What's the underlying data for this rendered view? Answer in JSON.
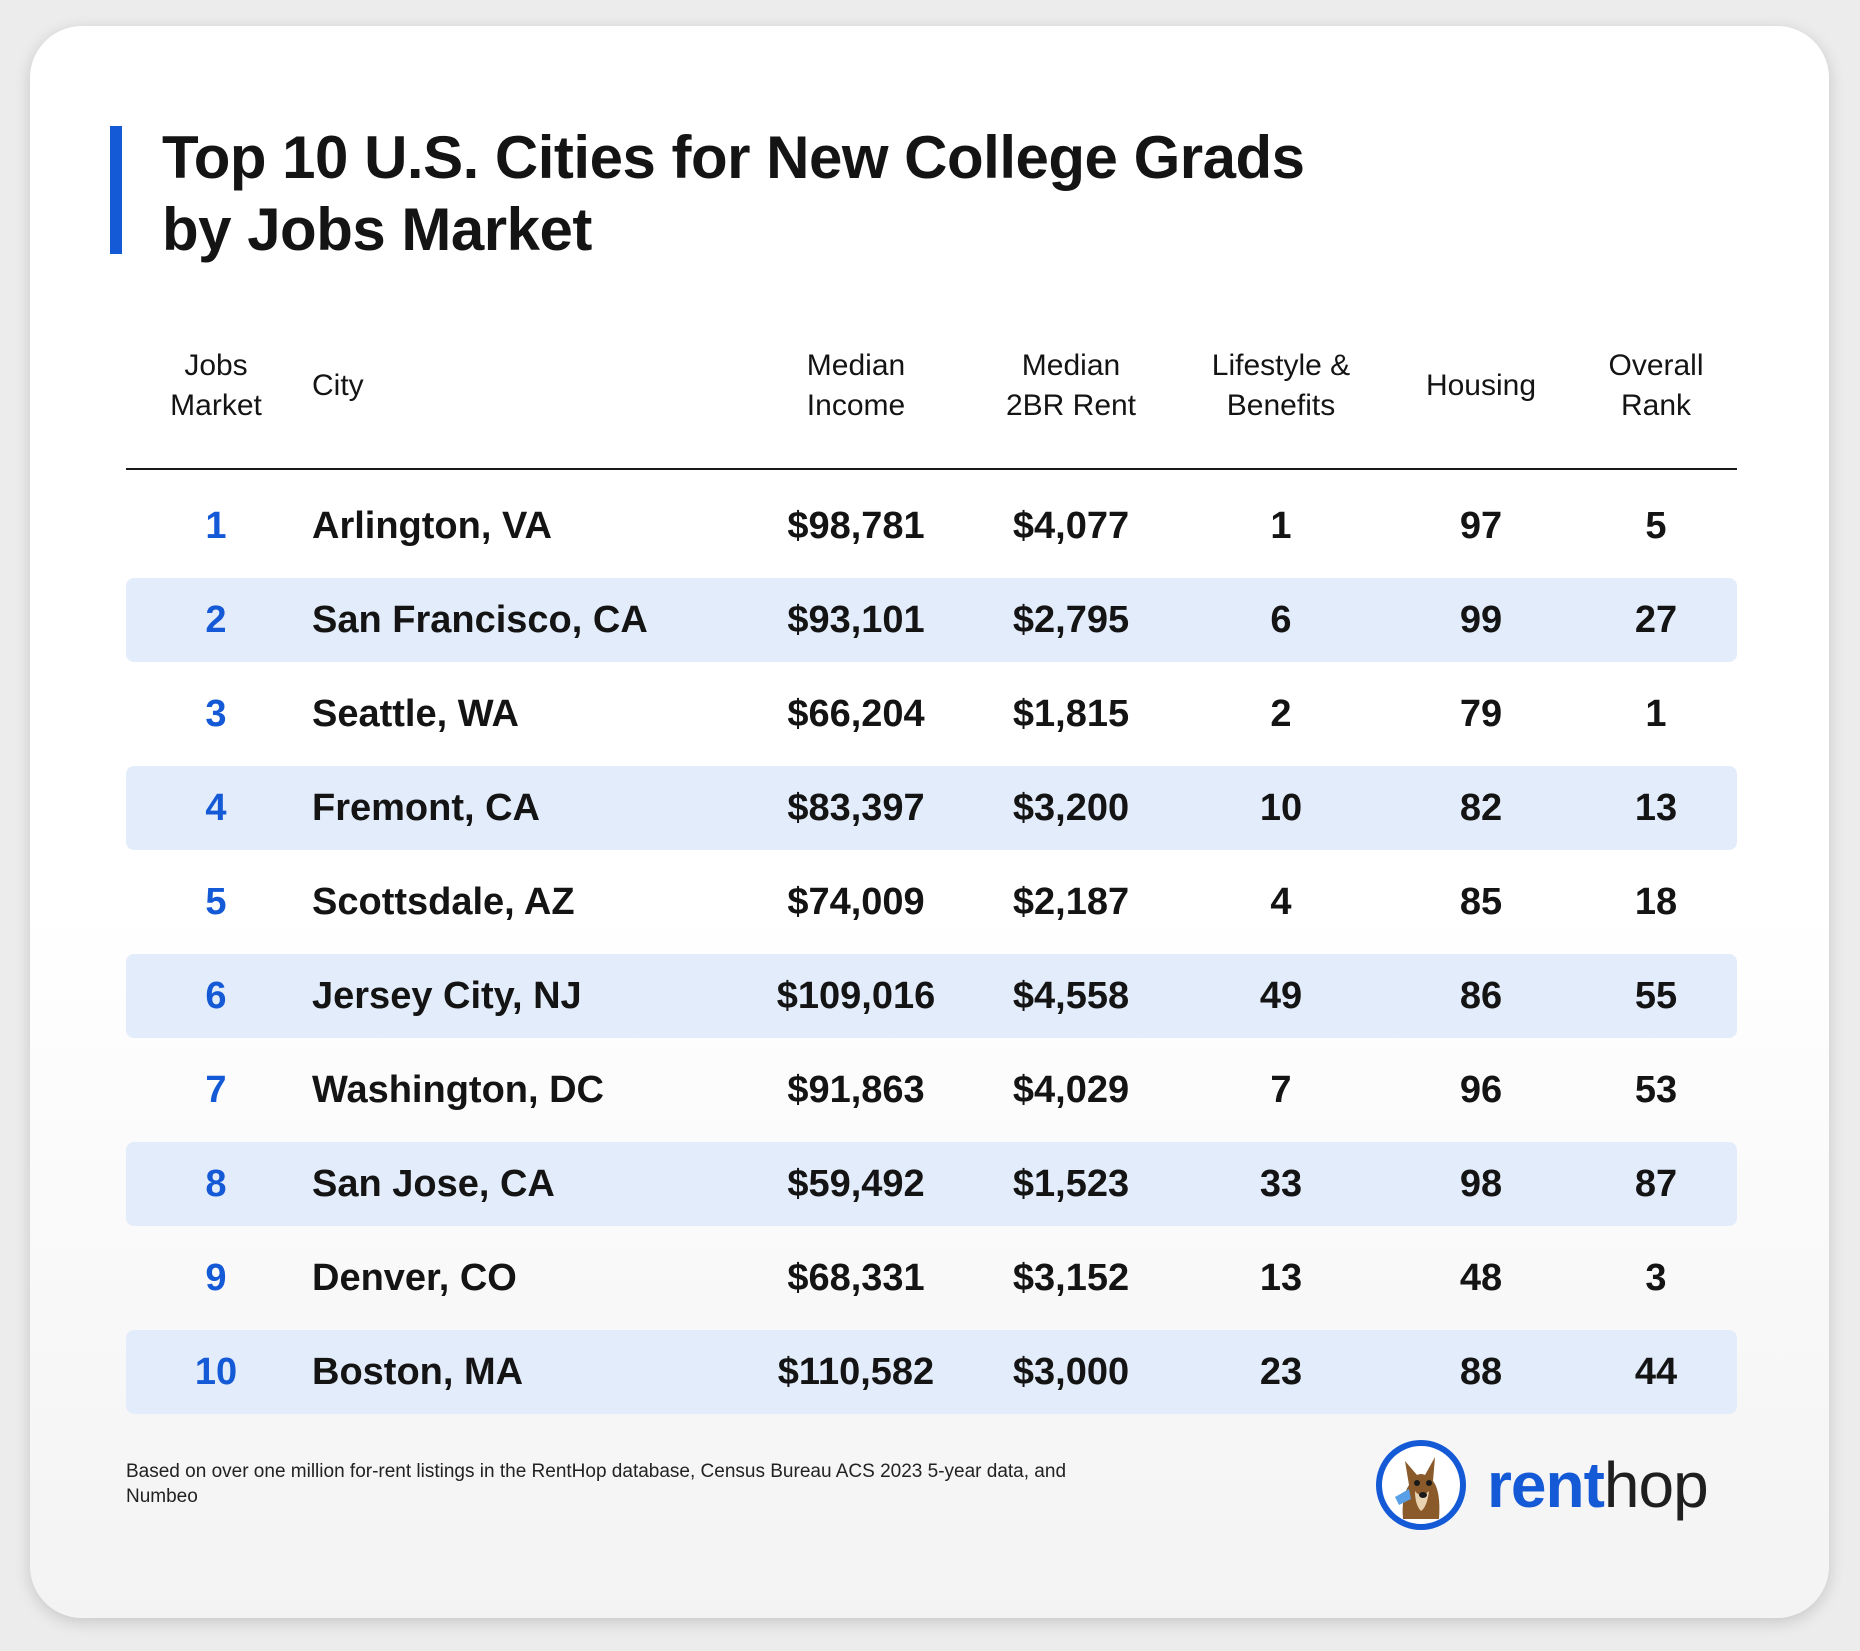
{
  "title": {
    "line1": "Top 10 U.S. Cities for New College Grads",
    "line2": "by Jobs Market"
  },
  "columns": [
    {
      "line1": "Jobs",
      "line2": "Market"
    },
    {
      "line1": "City",
      "line2": ""
    },
    {
      "line1": "Median",
      "line2": "Income"
    },
    {
      "line1": "Median",
      "line2": "2BR Rent"
    },
    {
      "line1": "Lifestyle &",
      "line2": "Benefits"
    },
    {
      "line1": "Housing",
      "line2": ""
    },
    {
      "line1": "Overall",
      "line2": "Rank"
    }
  ],
  "rows": [
    {
      "jobs": "1",
      "city": "Arlington, VA",
      "income": "$98,781",
      "rent": "$4,077",
      "lifestyle": "1",
      "housing": "97",
      "overall": "5"
    },
    {
      "jobs": "2",
      "city": "San Francisco, CA",
      "income": "$93,101",
      "rent": "$2,795",
      "lifestyle": "6",
      "housing": "99",
      "overall": "27"
    },
    {
      "jobs": "3",
      "city": "Seattle, WA",
      "income": "$66,204",
      "rent": "$1,815",
      "lifestyle": "2",
      "housing": "79",
      "overall": "1"
    },
    {
      "jobs": "4",
      "city": "Fremont, CA",
      "income": "$83,397",
      "rent": "$3,200",
      "lifestyle": "10",
      "housing": "82",
      "overall": "13"
    },
    {
      "jobs": "5",
      "city": "Scottsdale, AZ",
      "income": "$74,009",
      "rent": "$2,187",
      "lifestyle": "4",
      "housing": "85",
      "overall": "18"
    },
    {
      "jobs": "6",
      "city": "Jersey City, NJ",
      "income": "$109,016",
      "rent": "$4,558",
      "lifestyle": "49",
      "housing": "86",
      "overall": "55"
    },
    {
      "jobs": "7",
      "city": "Washington, DC",
      "income": "$91,863",
      "rent": "$4,029",
      "lifestyle": "7",
      "housing": "96",
      "overall": "53"
    },
    {
      "jobs": "8",
      "city": "San Jose, CA",
      "income": "$59,492",
      "rent": "$1,523",
      "lifestyle": "33",
      "housing": "98",
      "overall": "87"
    },
    {
      "jobs": "9",
      "city": "Denver, CO",
      "income": "$68,331",
      "rent": "$3,152",
      "lifestyle": "13",
      "housing": "48",
      "overall": "3"
    },
    {
      "jobs": "10",
      "city": "Boston, MA",
      "income": "$110,582",
      "rent": "$3,000",
      "lifestyle": "23",
      "housing": "88",
      "overall": "44"
    }
  ],
  "footnote": "Based on over one million for-rent listings in the RentHop database, Census Bureau ACS 2023 5-year data, and Numbeo",
  "logo": {
    "part1": "rent",
    "part2": "hop",
    "icon": "dog-mascot-icon"
  },
  "colors": {
    "accent": "#1459d6",
    "row_shade": "#e3ecfa",
    "text": "#141414"
  }
}
